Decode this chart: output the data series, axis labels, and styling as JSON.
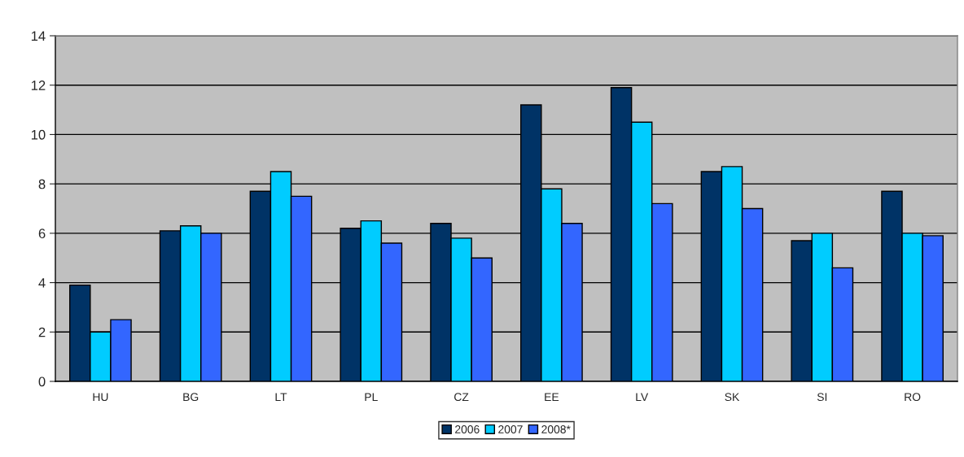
{
  "chart_data": {
    "type": "bar",
    "categories": [
      "HU",
      "BG",
      "LT",
      "PL",
      "CZ",
      "EE",
      "LV",
      "SK",
      "SI",
      "RO"
    ],
    "series": [
      {
        "name": "2006",
        "color": "#003366",
        "values": [
          3.9,
          6.1,
          7.7,
          6.2,
          6.4,
          11.2,
          11.9,
          8.5,
          5.7,
          7.7
        ]
      },
      {
        "name": "2007",
        "color": "#00ccff",
        "values": [
          2.0,
          6.3,
          8.5,
          6.5,
          5.8,
          7.8,
          10.5,
          8.7,
          6.0,
          6.0
        ]
      },
      {
        "name": "2008*",
        "color": "#3366ff",
        "values": [
          2.5,
          6.0,
          7.5,
          5.6,
          5.0,
          6.4,
          7.2,
          7.0,
          4.6,
          5.9
        ]
      }
    ],
    "ylim": [
      0,
      14
    ],
    "yticks": [
      0,
      2,
      4,
      6,
      8,
      10,
      12,
      14
    ],
    "grid": "y",
    "legend": "bottom"
  }
}
